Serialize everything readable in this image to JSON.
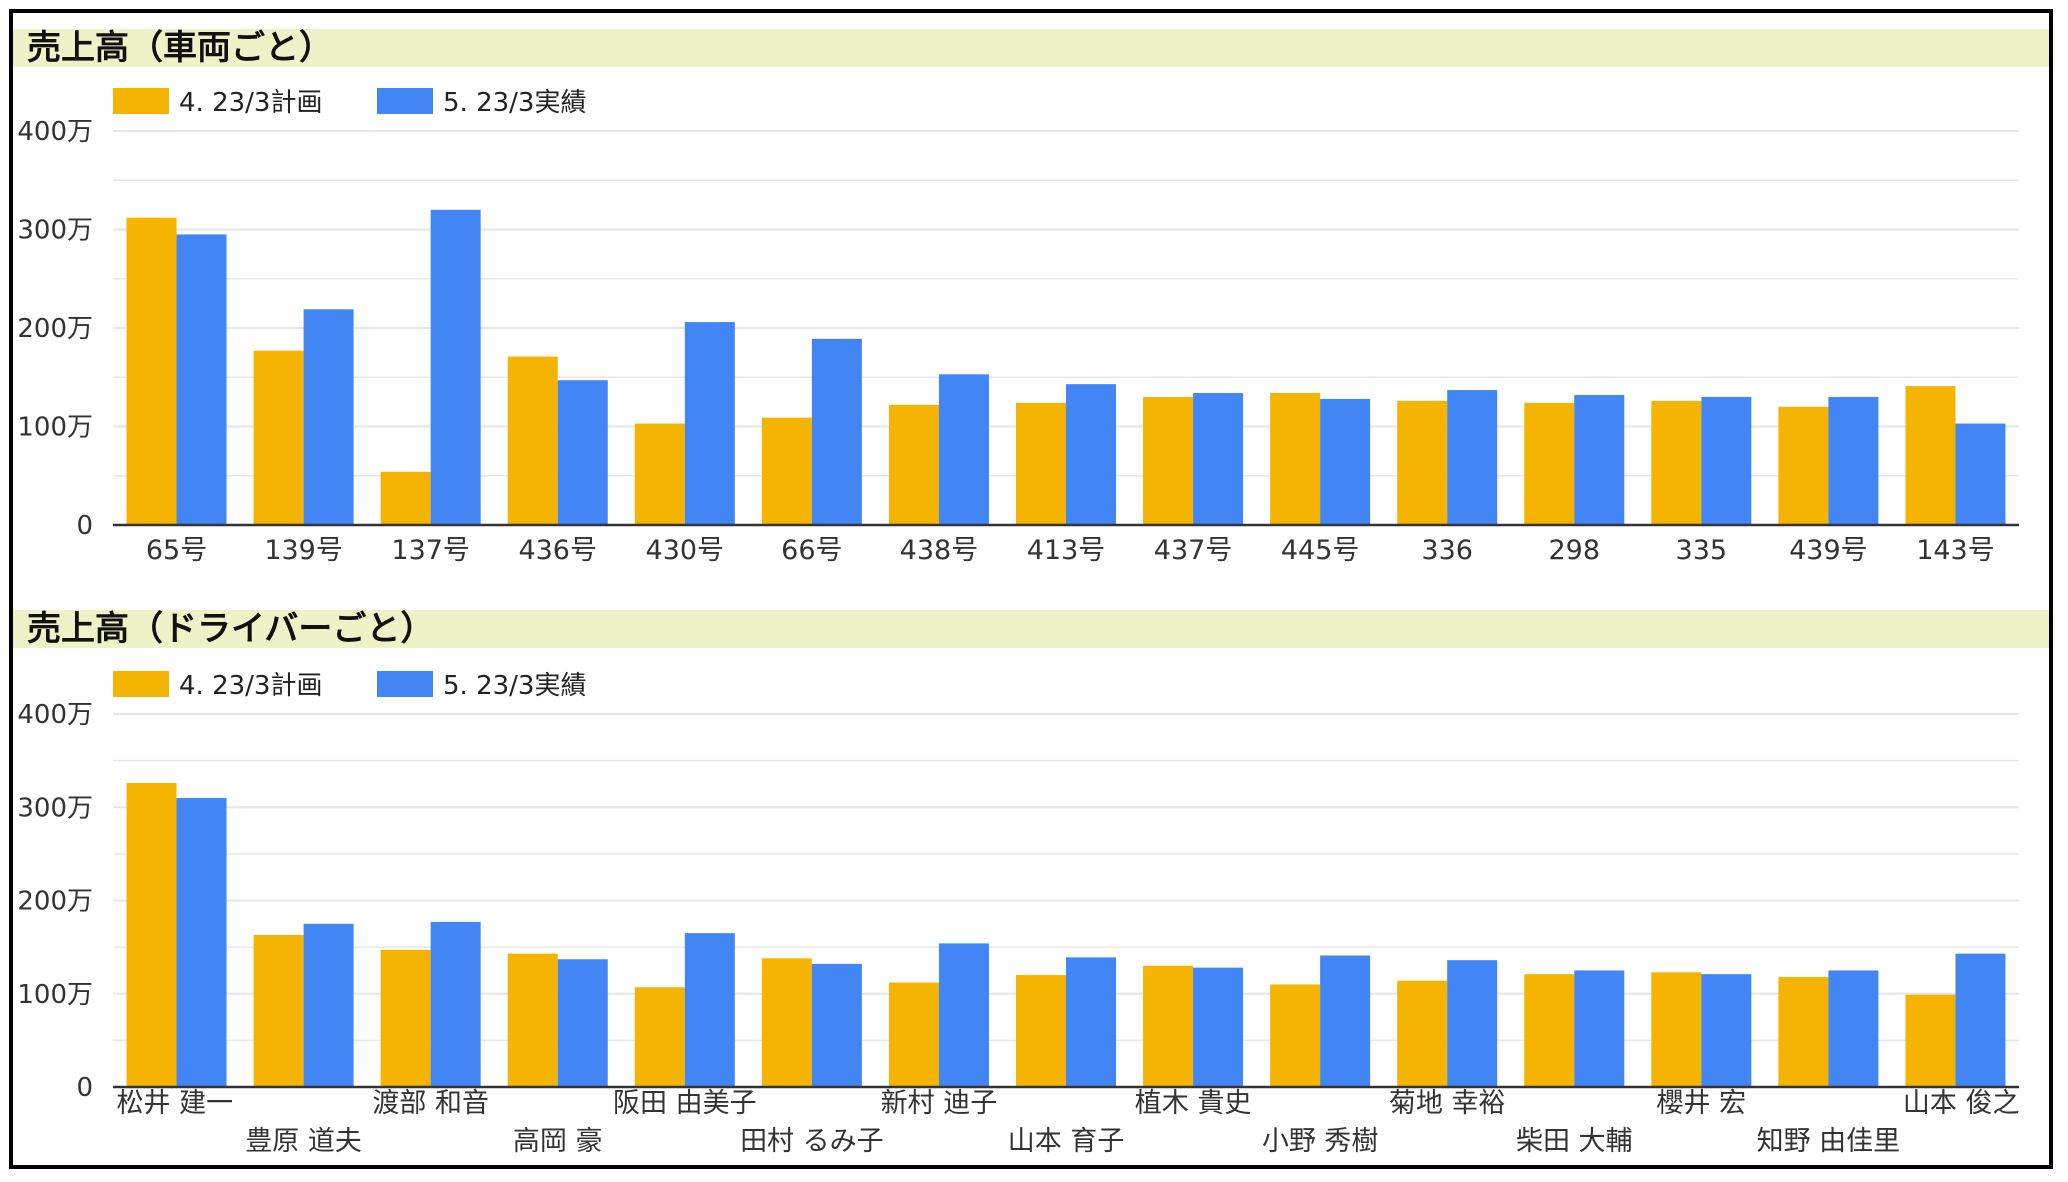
{
  "chart_data": [
    {
      "type": "bar",
      "title": "売上高（車両ごと）",
      "legend_position": "top-left",
      "grid": true,
      "ylim": [
        0,
        400
      ],
      "yticks": [
        "0",
        "100万",
        "200万",
        "300万",
        "400万"
      ],
      "categories": [
        "65号",
        "139号",
        "137号",
        "436号",
        "430号",
        "66号",
        "438号",
        "413号",
        "437号",
        "445号",
        "336",
        "298",
        "335",
        "439号",
        "143号"
      ],
      "series": [
        {
          "name": "4. 23/3計画",
          "color": "#F4B400",
          "values": [
            312,
            177,
            54,
            171,
            103,
            109,
            122,
            124,
            130,
            134,
            126,
            124,
            126,
            120,
            141
          ]
        },
        {
          "name": "5. 23/3実績",
          "color": "#4285F4",
          "values": [
            295,
            219,
            320,
            147,
            206,
            189,
            153,
            143,
            134,
            128,
            137,
            132,
            130,
            130,
            103
          ]
        }
      ]
    },
    {
      "type": "bar",
      "title": "売上高（ドライバーごと）",
      "legend_position": "top-left",
      "grid": true,
      "ylim": [
        0,
        400
      ],
      "yticks": [
        "0",
        "100万",
        "200万",
        "300万",
        "400万"
      ],
      "categories": [
        "松井 建一",
        "豊原 道夫",
        "渡部 和音",
        "高岡 豪",
        "阪田 由美子",
        "田村 るみ子",
        "新村 迪子",
        "山本 育子",
        "植木 貴史",
        "小野 秀樹",
        "菊地 幸裕",
        "柴田 大輔",
        "櫻井 宏",
        "知野 由佳里",
        "山本 俊之"
      ],
      "series": [
        {
          "name": "4. 23/3計画",
          "color": "#F4B400",
          "values": [
            326,
            163,
            147,
            143,
            107,
            138,
            112,
            120,
            130,
            110,
            114,
            121,
            123,
            118,
            99
          ]
        },
        {
          "name": "5. 23/3実績",
          "color": "#4285F4",
          "values": [
            310,
            175,
            177,
            137,
            165,
            132,
            154,
            139,
            128,
            141,
            136,
            125,
            121,
            125,
            143
          ]
        }
      ]
    }
  ]
}
